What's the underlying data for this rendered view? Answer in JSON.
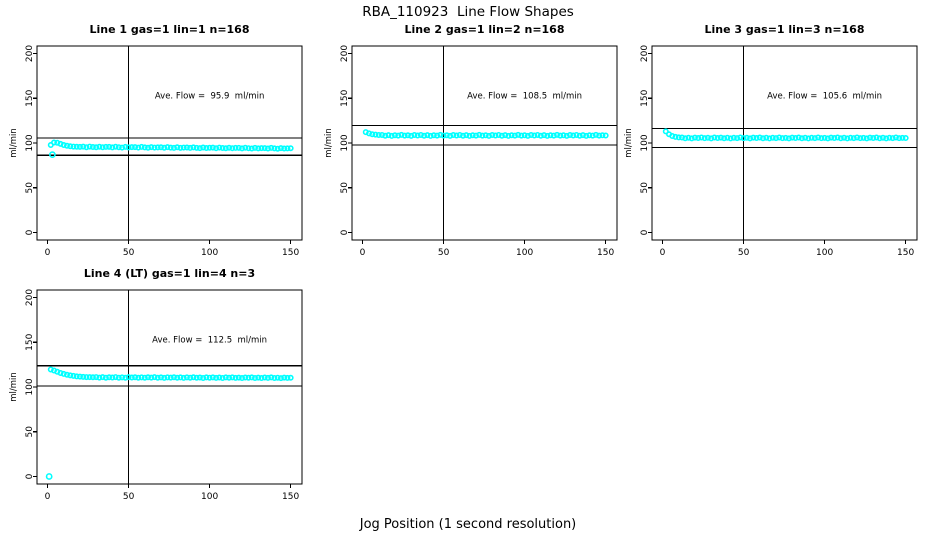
{
  "title": "RBA_110923  Line Flow Shapes",
  "xlabel": "Jog Position (1 second resolution)",
  "colors": {
    "points": "#00FFFF",
    "lines": "#000000",
    "background": "#FFFFFF"
  },
  "chart_data": [
    {
      "type": "scatter",
      "title": "Line 1 gas=1 lin=1 n=168",
      "line": 1,
      "gas": 1,
      "lin": 1,
      "n": 168,
      "ylabel": "ml/min",
      "annotation": "Ave. Flow =  95.9  ml/min",
      "ave_flow_ml_min": 95.9,
      "hlines": [
        105.5,
        86.3
      ],
      "vline": 50,
      "xticks": [
        0,
        50,
        100,
        150
      ],
      "yticks": [
        0,
        50,
        100,
        150,
        200
      ],
      "xlim": [
        -6.5,
        157
      ],
      "ylim": [
        -8.4,
        208.4
      ],
      "annotation_xy": [
        100,
        150
      ],
      "points": [
        [
          2,
          97.8
        ],
        [
          4,
          100.6
        ],
        [
          6,
          100.3
        ],
        [
          8,
          99
        ],
        [
          10,
          97.8
        ],
        [
          12,
          96.9
        ],
        [
          14,
          96.3
        ],
        [
          16,
          96
        ],
        [
          18,
          95.8
        ],
        [
          20,
          95.7
        ],
        [
          22,
          95.9
        ],
        [
          24,
          95.3
        ],
        [
          26,
          96
        ],
        [
          28,
          95.5
        ],
        [
          30,
          95.2
        ],
        [
          32,
          95.8
        ],
        [
          34,
          95.3
        ],
        [
          36,
          95.6
        ],
        [
          38,
          95.7
        ],
        [
          40,
          95.1
        ],
        [
          42,
          95.8
        ],
        [
          44,
          95.3
        ],
        [
          46,
          94.9
        ],
        [
          48,
          95.6
        ],
        [
          50,
          95.1
        ],
        [
          52,
          95.4
        ],
        [
          54,
          95.4
        ],
        [
          56,
          94.9
        ],
        [
          58,
          95.6
        ],
        [
          60,
          95.1
        ],
        [
          62,
          94.7
        ],
        [
          64,
          95.4
        ],
        [
          66,
          94.9
        ],
        [
          68,
          95.1
        ],
        [
          70,
          95.2
        ],
        [
          72,
          94.7
        ],
        [
          74,
          95.4
        ],
        [
          76,
          94.8
        ],
        [
          78,
          94.5
        ],
        [
          80,
          95.2
        ],
        [
          82,
          94.6
        ],
        [
          84,
          94.9
        ],
        [
          86,
          95
        ],
        [
          88,
          94.5
        ],
        [
          90,
          95.1
        ],
        [
          92,
          94.6
        ],
        [
          94,
          94.3
        ],
        [
          96,
          95
        ],
        [
          98,
          94.4
        ],
        [
          100,
          94.7
        ],
        [
          102,
          94.8
        ],
        [
          104,
          94.2
        ],
        [
          106,
          94.9
        ],
        [
          108,
          94.4
        ],
        [
          110,
          94.1
        ],
        [
          112,
          94.7
        ],
        [
          114,
          94.2
        ],
        [
          116,
          94.5
        ],
        [
          118,
          94.6
        ],
        [
          120,
          94
        ],
        [
          122,
          94.7
        ],
        [
          124,
          94.2
        ],
        [
          126,
          93.8
        ],
        [
          128,
          94.5
        ],
        [
          130,
          94
        ],
        [
          132,
          94.3
        ],
        [
          134,
          94.3
        ],
        [
          136,
          93.8
        ],
        [
          138,
          94.5
        ],
        [
          140,
          94
        ],
        [
          142,
          93.6
        ],
        [
          144,
          94.3
        ],
        [
          146,
          93.8
        ],
        [
          148,
          94
        ],
        [
          150,
          94.1
        ]
      ],
      "outliers": [
        [
          3,
          87
        ]
      ]
    },
    {
      "type": "scatter",
      "title": "Line 2 gas=1 lin=2 n=168",
      "line": 2,
      "gas": 1,
      "lin": 2,
      "n": 168,
      "ylabel": "ml/min",
      "annotation": "Ave. Flow =  108.5  ml/min",
      "ave_flow_ml_min": 108.5,
      "hlines": [
        119.4,
        97.7
      ],
      "vline": 50,
      "xticks": [
        0,
        50,
        100,
        150
      ],
      "yticks": [
        0,
        50,
        100,
        150,
        200
      ],
      "xlim": [
        -6.5,
        157
      ],
      "ylim": [
        -8.4,
        208.4
      ],
      "annotation_xy": [
        100,
        150
      ],
      "points": [
        [
          2,
          112.2
        ],
        [
          4,
          110.8
        ],
        [
          6,
          109.8
        ],
        [
          8,
          109.3
        ],
        [
          10,
          109
        ],
        [
          12,
          109
        ],
        [
          14,
          108.1
        ],
        [
          16,
          108.8
        ],
        [
          18,
          107.9
        ],
        [
          20,
          108.7
        ],
        [
          22,
          108.3
        ],
        [
          24,
          109.1
        ],
        [
          26,
          108.2
        ],
        [
          28,
          108.6
        ],
        [
          30,
          108
        ],
        [
          32,
          108.9
        ],
        [
          34,
          108.4
        ],
        [
          36,
          109
        ],
        [
          38,
          108.1
        ],
        [
          40,
          108.8
        ],
        [
          42,
          107.9
        ],
        [
          44,
          108.7
        ],
        [
          46,
          108.3
        ],
        [
          48,
          109.1
        ],
        [
          50,
          108.2
        ],
        [
          52,
          108.6
        ],
        [
          54,
          108
        ],
        [
          56,
          108.9
        ],
        [
          58,
          108.4
        ],
        [
          60,
          109
        ],
        [
          62,
          108.1
        ],
        [
          64,
          108.8
        ],
        [
          66,
          107.9
        ],
        [
          68,
          108.7
        ],
        [
          70,
          108.3
        ],
        [
          72,
          109.1
        ],
        [
          74,
          108.2
        ],
        [
          76,
          108.6
        ],
        [
          78,
          108
        ],
        [
          80,
          108.9
        ],
        [
          82,
          108.4
        ],
        [
          84,
          109
        ],
        [
          86,
          108.1
        ],
        [
          88,
          108.8
        ],
        [
          90,
          107.9
        ],
        [
          92,
          108.7
        ],
        [
          94,
          108.3
        ],
        [
          96,
          109.1
        ],
        [
          98,
          108.2
        ],
        [
          100,
          108.6
        ],
        [
          102,
          108
        ],
        [
          104,
          108.9
        ],
        [
          106,
          108.4
        ],
        [
          108,
          109
        ],
        [
          110,
          108.1
        ],
        [
          112,
          108.8
        ],
        [
          114,
          107.9
        ],
        [
          116,
          108.7
        ],
        [
          118,
          108.3
        ],
        [
          120,
          109.1
        ],
        [
          122,
          108.2
        ],
        [
          124,
          108.6
        ],
        [
          126,
          108
        ],
        [
          128,
          108.9
        ],
        [
          130,
          108.4
        ],
        [
          132,
          109
        ],
        [
          134,
          108.1
        ],
        [
          136,
          108.8
        ],
        [
          138,
          107.9
        ],
        [
          140,
          108.7
        ],
        [
          142,
          108.3
        ],
        [
          144,
          109.1
        ],
        [
          146,
          108.2
        ],
        [
          148,
          108.6
        ],
        [
          150,
          108.4
        ]
      ],
      "outliers": []
    },
    {
      "type": "scatter",
      "title": "Line 3 gas=1 lin=3 n=168",
      "line": 3,
      "gas": 1,
      "lin": 3,
      "n": 168,
      "ylabel": "ml/min",
      "annotation": "Ave. Flow =  105.6  ml/min",
      "ave_flow_ml_min": 105.6,
      "hlines": [
        116.2,
        95
      ],
      "vline": 50,
      "xticks": [
        0,
        50,
        100,
        150
      ],
      "yticks": [
        0,
        50,
        100,
        150,
        200
      ],
      "xlim": [
        -6.5,
        157
      ],
      "ylim": [
        -8.4,
        208.4
      ],
      "annotation_xy": [
        100,
        150
      ],
      "points": [
        [
          2,
          113
        ],
        [
          4,
          109.8
        ],
        [
          6,
          107.8
        ],
        [
          8,
          106.8
        ],
        [
          10,
          106.3
        ],
        [
          12,
          106.1
        ],
        [
          14,
          105.3
        ],
        [
          16,
          105.9
        ],
        [
          18,
          105.2
        ],
        [
          20,
          106
        ],
        [
          22,
          105.6
        ],
        [
          24,
          106.2
        ],
        [
          26,
          105.4
        ],
        [
          28,
          105.8
        ],
        [
          30,
          105.2
        ],
        [
          32,
          106.1
        ],
        [
          34,
          105.6
        ],
        [
          36,
          106
        ],
        [
          38,
          105.3
        ],
        [
          40,
          105.9
        ],
        [
          42,
          105.1
        ],
        [
          44,
          105.8
        ],
        [
          46,
          105.5
        ],
        [
          48,
          106.2
        ],
        [
          50,
          105.4
        ],
        [
          52,
          105.8
        ],
        [
          54,
          105.2
        ],
        [
          56,
          106
        ],
        [
          58,
          105.6
        ],
        [
          60,
          106.1
        ],
        [
          62,
          105.3
        ],
        [
          64,
          105.9
        ],
        [
          66,
          105.1
        ],
        [
          68,
          105.8
        ],
        [
          70,
          105.5
        ],
        [
          72,
          106.2
        ],
        [
          74,
          105.4
        ],
        [
          76,
          105.7
        ],
        [
          78,
          105.2
        ],
        [
          80,
          106
        ],
        [
          82,
          105.6
        ],
        [
          84,
          106.1
        ],
        [
          86,
          105.3
        ],
        [
          88,
          105.9
        ],
        [
          90,
          105.1
        ],
        [
          92,
          105.8
        ],
        [
          94,
          105.5
        ],
        [
          96,
          106.2
        ],
        [
          98,
          105.4
        ],
        [
          100,
          105.7
        ],
        [
          102,
          105.2
        ],
        [
          104,
          106
        ],
        [
          106,
          105.6
        ],
        [
          108,
          106.1
        ],
        [
          110,
          105.3
        ],
        [
          112,
          105.9
        ],
        [
          114,
          105.1
        ],
        [
          116,
          105.8
        ],
        [
          118,
          105.5
        ],
        [
          120,
          106.2
        ],
        [
          122,
          105.4
        ],
        [
          124,
          105.7
        ],
        [
          126,
          105.2
        ],
        [
          128,
          106
        ],
        [
          130,
          105.6
        ],
        [
          132,
          106.1
        ],
        [
          134,
          105.3
        ],
        [
          136,
          105.9
        ],
        [
          138,
          105.1
        ],
        [
          140,
          105.8
        ],
        [
          142,
          105.5
        ],
        [
          144,
          106.2
        ],
        [
          146,
          105.4
        ],
        [
          148,
          105.7
        ],
        [
          150,
          105.6
        ]
      ],
      "outliers": []
    },
    {
      "type": "scatter",
      "title": "Line 4 (LT) gas=1 lin=4 n=3",
      "line": 4,
      "gas": 1,
      "lin": 4,
      "n": 3,
      "ylabel": "ml/min",
      "annotation": "Ave. Flow =  112.5  ml/min",
      "ave_flow_ml_min": 112.5,
      "hlines": [
        123.8,
        101.3
      ],
      "vline": 50,
      "xticks": [
        0,
        50,
        100,
        150
      ],
      "yticks": [
        0,
        50,
        100,
        150,
        200
      ],
      "xlim": [
        -6.5,
        157
      ],
      "ylim": [
        -8.4,
        208.4
      ],
      "annotation_xy": [
        100,
        150
      ],
      "points": [
        [
          2,
          119.6
        ],
        [
          4,
          118.4
        ],
        [
          6,
          117
        ],
        [
          8,
          115.7
        ],
        [
          10,
          114.6
        ],
        [
          12,
          113.7
        ],
        [
          14,
          113
        ],
        [
          16,
          112.4
        ],
        [
          18,
          111.9
        ],
        [
          20,
          111.6
        ],
        [
          22,
          111.3
        ],
        [
          24,
          111.1
        ],
        [
          26,
          111
        ],
        [
          28,
          110.9
        ],
        [
          30,
          111.1
        ],
        [
          32,
          110.5
        ],
        [
          34,
          111
        ],
        [
          36,
          110.4
        ],
        [
          38,
          110.9
        ],
        [
          40,
          110.6
        ],
        [
          42,
          111.1
        ],
        [
          44,
          110.4
        ],
        [
          46,
          110.8
        ],
        [
          48,
          110.3
        ],
        [
          50,
          111
        ],
        [
          52,
          110.6
        ],
        [
          54,
          110.9
        ],
        [
          56,
          110.3
        ],
        [
          58,
          110.8
        ],
        [
          60,
          110.4
        ],
        [
          62,
          110.9
        ],
        [
          64,
          110.5
        ],
        [
          66,
          111
        ],
        [
          68,
          110.3
        ],
        [
          70,
          110.7
        ],
        [
          72,
          110.2
        ],
        [
          74,
          110.8
        ],
        [
          76,
          110.5
        ],
        [
          78,
          110.9
        ],
        [
          80,
          110.3
        ],
        [
          82,
          110.7
        ],
        [
          84,
          110.2
        ],
        [
          86,
          110.8
        ],
        [
          88,
          110.4
        ],
        [
          90,
          110.9
        ],
        [
          92,
          110.3
        ],
        [
          94,
          110.6
        ],
        [
          96,
          110.1
        ],
        [
          98,
          110.7
        ],
        [
          100,
          110.4
        ],
        [
          102,
          110.8
        ],
        [
          104,
          110.2
        ],
        [
          106,
          110.6
        ],
        [
          108,
          110.1
        ],
        [
          110,
          110.7
        ],
        [
          112,
          110.3
        ],
        [
          114,
          110.8
        ],
        [
          116,
          110.2
        ],
        [
          118,
          110.5
        ],
        [
          120,
          110
        ],
        [
          122,
          110.6
        ],
        [
          124,
          110.3
        ],
        [
          126,
          110.7
        ],
        [
          128,
          110.1
        ],
        [
          130,
          110.5
        ],
        [
          132,
          110
        ],
        [
          134,
          110.6
        ],
        [
          136,
          110.2
        ],
        [
          138,
          110.7
        ],
        [
          140,
          110.1
        ],
        [
          142,
          110.4
        ],
        [
          144,
          109.9
        ],
        [
          146,
          110.5
        ],
        [
          148,
          110.2
        ],
        [
          150,
          110.3
        ]
      ],
      "outliers": [
        [
          1,
          0
        ]
      ]
    }
  ]
}
